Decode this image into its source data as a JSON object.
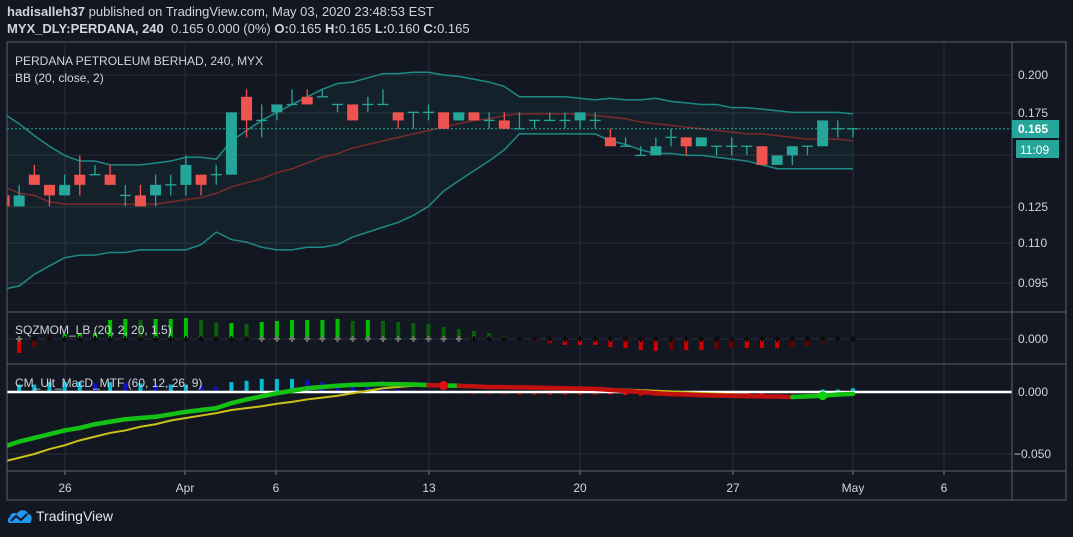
{
  "header": {
    "author": "hadisalleh37",
    "published_text": "published on TradingView.com, May 03, 2020 23:48:53 EST",
    "symbol": "MYX_DLY:PERDANA, 240",
    "quote": "0.165 0.000 (0%)",
    "o_label": "O:",
    "o_value": "0.165",
    "h_label": "H:",
    "h_value": "0.165",
    "l_label": "L:",
    "l_value": "0.160",
    "c_label": "C:",
    "c_value": "0.165"
  },
  "footer": {
    "brand": "TradingView"
  },
  "chart_data": {
    "type": "candlestick",
    "title": "PERDANA PETROLEUM BERHAD, 240, MYX",
    "x_tick_labels": [
      "26",
      "Apr",
      "6",
      "13",
      "20",
      "27",
      "May",
      "6"
    ],
    "colors": {
      "up": "#26a69a",
      "down": "#ef5350",
      "bb_band": "#1e8a86",
      "bb_basis": "#7a2a2a",
      "macd_up": "#15c015",
      "macd_down": "#c01010",
      "signal": "#c8c21a"
    },
    "main": {
      "yscale": "log",
      "ylim": [
        0.09,
        0.21
      ],
      "y_tick_labels": [
        "0.200",
        "0.175",
        "0.125",
        "0.110",
        "0.095"
      ],
      "last_price_label": "0.165",
      "countdown_label": "11:09",
      "last_price": 0.165,
      "indicator_label": "BB (20, close, 2)",
      "ohlc": [
        [
          0.13,
          0.13,
          0.125,
          0.125
        ],
        [
          0.125,
          0.135,
          0.125,
          0.13
        ],
        [
          0.14,
          0.145,
          0.135,
          0.135
        ],
        [
          0.135,
          0.135,
          0.125,
          0.13
        ],
        [
          0.13,
          0.14,
          0.13,
          0.135
        ],
        [
          0.14,
          0.15,
          0.13,
          0.135
        ],
        [
          0.14,
          0.145,
          0.14,
          0.14
        ],
        [
          0.14,
          0.145,
          0.135,
          0.135
        ],
        [
          0.13,
          0.135,
          0.125,
          0.13
        ],
        [
          0.13,
          0.135,
          0.125,
          0.125
        ],
        [
          0.13,
          0.14,
          0.125,
          0.135
        ],
        [
          0.135,
          0.14,
          0.13,
          0.135
        ],
        [
          0.135,
          0.15,
          0.13,
          0.145
        ],
        [
          0.14,
          0.14,
          0.13,
          0.135
        ],
        [
          0.14,
          0.145,
          0.135,
          0.14
        ],
        [
          0.14,
          0.175,
          0.14,
          0.175
        ],
        [
          0.185,
          0.19,
          0.16,
          0.17
        ],
        [
          0.17,
          0.18,
          0.16,
          0.17
        ],
        [
          0.175,
          0.18,
          0.17,
          0.18
        ],
        [
          0.18,
          0.19,
          0.18,
          0.18
        ],
        [
          0.185,
          0.19,
          0.18,
          0.18
        ],
        [
          0.185,
          0.19,
          0.185,
          0.185
        ],
        [
          0.18,
          0.18,
          0.175,
          0.18
        ],
        [
          0.18,
          0.18,
          0.17,
          0.17
        ],
        [
          0.18,
          0.185,
          0.175,
          0.18
        ],
        [
          0.18,
          0.19,
          0.18,
          0.18
        ],
        [
          0.175,
          0.175,
          0.165,
          0.17
        ],
        [
          0.175,
          0.175,
          0.165,
          0.175
        ],
        [
          0.175,
          0.18,
          0.17,
          0.175
        ],
        [
          0.175,
          0.175,
          0.165,
          0.165
        ],
        [
          0.17,
          0.175,
          0.17,
          0.175
        ],
        [
          0.175,
          0.175,
          0.17,
          0.17
        ],
        [
          0.17,
          0.175,
          0.165,
          0.17
        ],
        [
          0.17,
          0.175,
          0.165,
          0.165
        ],
        [
          0.165,
          0.175,
          0.165,
          0.165
        ],
        [
          0.17,
          0.17,
          0.165,
          0.17
        ],
        [
          0.17,
          0.175,
          0.17,
          0.17
        ],
        [
          0.17,
          0.175,
          0.165,
          0.17
        ],
        [
          0.17,
          0.175,
          0.165,
          0.175
        ],
        [
          0.17,
          0.175,
          0.165,
          0.17
        ],
        [
          0.16,
          0.165,
          0.155,
          0.155
        ],
        [
          0.155,
          0.16,
          0.155,
          0.155
        ],
        [
          0.15,
          0.155,
          0.15,
          0.15
        ],
        [
          0.15,
          0.16,
          0.15,
          0.155
        ],
        [
          0.16,
          0.165,
          0.155,
          0.16
        ],
        [
          0.16,
          0.16,
          0.15,
          0.155
        ],
        [
          0.155,
          0.16,
          0.155,
          0.16
        ],
        [
          0.155,
          0.155,
          0.15,
          0.155
        ],
        [
          0.155,
          0.16,
          0.15,
          0.155
        ],
        [
          0.155,
          0.155,
          0.15,
          0.155
        ],
        [
          0.155,
          0.155,
          0.145,
          0.145
        ],
        [
          0.145,
          0.15,
          0.145,
          0.15
        ],
        [
          0.15,
          0.155,
          0.145,
          0.155
        ],
        [
          0.155,
          0.155,
          0.15,
          0.155
        ],
        [
          0.155,
          0.17,
          0.155,
          0.17
        ],
        [
          0.165,
          0.17,
          0.16,
          0.165
        ],
        [
          0.165,
          0.165,
          0.16,
          0.165
        ]
      ],
      "bb_upper": [
        0.174,
        0.168,
        0.161,
        0.155,
        0.15,
        0.147,
        0.147,
        0.145,
        0.145,
        0.145,
        0.146,
        0.147,
        0.149,
        0.149,
        0.148,
        0.158,
        0.164,
        0.17,
        0.175,
        0.18,
        0.185,
        0.19,
        0.194,
        0.195,
        0.198,
        0.201,
        0.201,
        0.202,
        0.202,
        0.2,
        0.199,
        0.197,
        0.195,
        0.192,
        0.185,
        0.185,
        0.185,
        0.185,
        0.184,
        0.183,
        0.184,
        0.183,
        0.183,
        0.184,
        0.182,
        0.181,
        0.18,
        0.18,
        0.178,
        0.178,
        0.177,
        0.176,
        0.175,
        0.175,
        0.175,
        0.175,
        0.174
      ],
      "bb_basis": [
        0.134,
        0.131,
        0.13,
        0.127,
        0.126,
        0.126,
        0.126,
        0.126,
        0.126,
        0.126,
        0.126,
        0.127,
        0.128,
        0.129,
        0.131,
        0.134,
        0.136,
        0.138,
        0.141,
        0.143,
        0.146,
        0.149,
        0.151,
        0.154,
        0.156,
        0.158,
        0.16,
        0.162,
        0.164,
        0.166,
        0.168,
        0.17,
        0.171,
        0.173,
        0.174,
        0.174,
        0.174,
        0.174,
        0.174,
        0.173,
        0.172,
        0.171,
        0.169,
        0.168,
        0.167,
        0.166,
        0.165,
        0.164,
        0.163,
        0.162,
        0.162,
        0.161,
        0.16,
        0.159,
        0.159,
        0.159,
        0.158
      ],
      "bb_lower": [
        0.093,
        0.094,
        0.098,
        0.101,
        0.104,
        0.105,
        0.105,
        0.106,
        0.106,
        0.107,
        0.107,
        0.107,
        0.107,
        0.109,
        0.114,
        0.111,
        0.11,
        0.108,
        0.107,
        0.107,
        0.108,
        0.108,
        0.109,
        0.112,
        0.114,
        0.116,
        0.118,
        0.121,
        0.125,
        0.132,
        0.137,
        0.142,
        0.147,
        0.153,
        0.162,
        0.162,
        0.162,
        0.162,
        0.162,
        0.162,
        0.158,
        0.156,
        0.153,
        0.151,
        0.151,
        0.15,
        0.15,
        0.149,
        0.148,
        0.147,
        0.145,
        0.143,
        0.143,
        0.143,
        0.143,
        0.143,
        0.143
      ]
    },
    "squeeze": {
      "label": "SQZMOM_LB (20, 2, 20, 1.5)",
      "y_tick_labels": [
        "0.000"
      ],
      "values": [
        null,
        -0.014,
        -0.008,
        -0.001,
        0.005,
        0.006,
        0.006,
        0.019,
        0.02,
        0.019,
        0.02,
        0.02,
        0.021,
        0.019,
        0.016,
        0.016,
        0.015,
        0.017,
        0.018,
        0.019,
        0.019,
        0.019,
        0.02,
        0.018,
        0.019,
        0.018,
        0.017,
        0.016,
        0.015,
        0.012,
        0.01,
        0.008,
        0.006,
        0.003,
        -0.001,
        -0.002,
        -0.004,
        -0.006,
        -0.006,
        -0.006,
        -0.008,
        -0.009,
        -0.011,
        -0.012,
        -0.011,
        -0.011,
        -0.011,
        -0.01,
        -0.009,
        -0.009,
        -0.009,
        -0.009,
        -0.008,
        -0.007,
        -0.004,
        -0.002,
        0.0
      ],
      "squeeze_on": [
        0,
        0,
        1,
        1,
        1,
        1,
        1,
        1,
        1,
        1,
        1,
        1,
        1,
        1,
        1,
        1,
        1,
        0,
        0,
        0,
        0,
        0,
        0,
        0,
        0,
        0,
        0,
        0,
        0,
        0,
        0,
        1,
        1,
        1,
        1,
        1,
        1,
        1,
        1,
        1,
        1,
        1,
        1,
        1,
        1,
        1,
        1,
        1,
        1,
        1,
        1,
        1,
        1,
        1,
        1,
        1,
        1
      ]
    },
    "macd": {
      "label": "CM_Ult_MacD_MTF (60, 12, 26, 9)",
      "y_tick_labels": [
        "0.000",
        "−0.050"
      ],
      "macd": [
        -0.044,
        -0.04,
        -0.037,
        -0.034,
        -0.031,
        -0.029,
        -0.026,
        -0.024,
        -0.022,
        -0.021,
        -0.02,
        -0.018,
        -0.016,
        -0.0145,
        -0.013,
        -0.009,
        -0.006,
        -0.0035,
        -0.001,
        0.001,
        0.003,
        0.004,
        0.005,
        0.0057,
        0.006,
        0.0065,
        0.0062,
        0.006,
        0.0055,
        0.0052,
        0.005,
        0.0045,
        0.004,
        0.0039,
        0.0037,
        0.0035,
        0.0032,
        0.003,
        0.0027,
        0.0025,
        0.0017,
        0.0008,
        0.0,
        -0.001,
        -0.0017,
        -0.002,
        -0.0025,
        -0.0028,
        -0.003,
        -0.0033,
        -0.0035,
        -0.0037,
        -0.004,
        -0.0035,
        -0.003,
        -0.002,
        -0.0015
      ],
      "signal": [
        -0.056,
        -0.053,
        -0.05,
        -0.046,
        -0.043,
        -0.039,
        -0.036,
        -0.033,
        -0.031,
        -0.028,
        -0.026,
        -0.023,
        -0.021,
        -0.019,
        -0.017,
        -0.0145,
        -0.013,
        -0.0115,
        -0.0095,
        -0.008,
        -0.006,
        -0.0045,
        -0.003,
        -0.001,
        0.001,
        0.003,
        0.004,
        0.005,
        0.0055,
        0.0053,
        0.005,
        0.0048,
        0.0045,
        0.0043,
        0.004,
        0.0038,
        0.0035,
        0.0033,
        0.003,
        0.0028,
        0.0025,
        0.002,
        0.0015,
        0.001,
        0.0005,
        -0.0002,
        -0.0008,
        -0.0013,
        -0.0017,
        -0.0022,
        -0.0028,
        -0.0033,
        -0.0038,
        -0.0037,
        -0.003,
        -0.002,
        -0.0015
      ],
      "histogram": [
        null,
        0.006,
        0.006,
        0.008,
        0.008,
        0.008,
        0.007,
        0.008,
        0.007,
        0.007,
        0.006,
        0.006,
        0.006,
        0.005,
        0.004,
        0.008,
        0.009,
        0.0105,
        0.0105,
        0.0105,
        0.0095,
        0.008,
        0.007,
        0.0055,
        0.004,
        0.003,
        0.002,
        0.001,
        0.0005,
        -0.001,
        -0.001,
        -0.0015,
        -0.0015,
        -0.0015,
        -0.002,
        -0.002,
        -0.002,
        -0.002,
        -0.002,
        -0.002,
        -0.002,
        -0.0025,
        -0.003,
        -0.003,
        -0.003,
        -0.003,
        -0.0025,
        -0.0025,
        -0.002,
        -0.002,
        -0.002,
        -0.0015,
        -0.0015,
        -0.001,
        0.002,
        0.002,
        0.003
      ],
      "cross_down_index": 29,
      "cross_up_index": 54
    }
  }
}
